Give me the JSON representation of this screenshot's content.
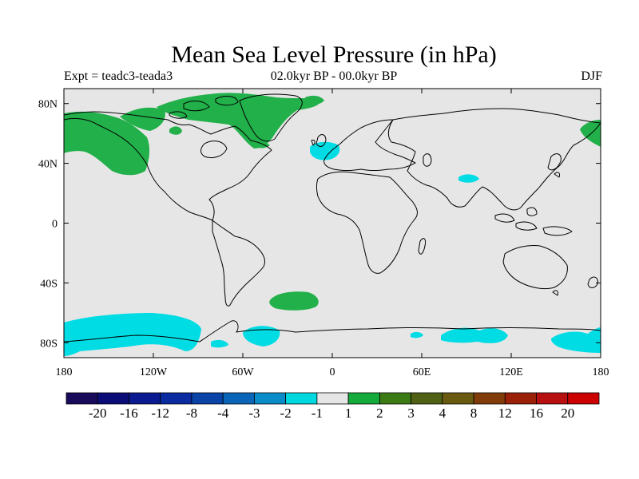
{
  "title": "Mean Sea Level Pressure (in hPa)",
  "left_string": "Expt = teadc3-teada3",
  "center_string": "02.0kyr BP - 00.0kyr BP",
  "right_string": "DJF",
  "axes": {
    "x_ticks": [
      "180",
      "120W",
      "60W",
      "0",
      "60E",
      "120E",
      "180"
    ],
    "y_ticks": [
      "80N",
      "40N",
      "0",
      "40S",
      "80S"
    ]
  },
  "colorbar": {
    "labels": [
      "-20",
      "-16",
      "-12",
      "-8",
      "-4",
      "-3",
      "-2",
      "-1",
      "1",
      "2",
      "3",
      "4",
      "8",
      "12",
      "16",
      "20"
    ],
    "colors": [
      "#1a0a5a",
      "#0c0c78",
      "#0a1a90",
      "#0a2ca0",
      "#0a44a8",
      "#0a64b8",
      "#0a8cc8",
      "#00d8e0",
      "#e6e6e6",
      "#14aa3c",
      "#3c7a14",
      "#506014",
      "#6a5a10",
      "#823c0a",
      "#9a2008",
      "#b81010",
      "#cc0000"
    ]
  },
  "colors": {
    "background": "#e6e6e6",
    "positive": "#22b04a",
    "negative": "#00dce4",
    "coastline": "#000000"
  },
  "map": {
    "projection": "cylindrical-equidistant",
    "region": "global",
    "lon_range": [
      -180,
      180
    ],
    "lat_range": [
      -90,
      90
    ],
    "anomaly_regions": [
      {
        "name": "alaska-nw-america",
        "sign": "positive",
        "level": "2"
      },
      {
        "name": "canadian-arctic-greenland",
        "sign": "positive",
        "level": "2"
      },
      {
        "name": "east-siberia",
        "sign": "positive",
        "level": "2"
      },
      {
        "name": "south-atlantic",
        "sign": "positive",
        "level": "2"
      },
      {
        "name": "ross-sea-antarctica",
        "sign": "negative",
        "level": "-1"
      },
      {
        "name": "weddell-sea",
        "sign": "negative",
        "level": "-1"
      },
      {
        "name": "north-atlantic-iberia",
        "sign": "negative",
        "level": "-1"
      },
      {
        "name": "east-antarctica",
        "sign": "negative",
        "level": "-1"
      }
    ]
  }
}
